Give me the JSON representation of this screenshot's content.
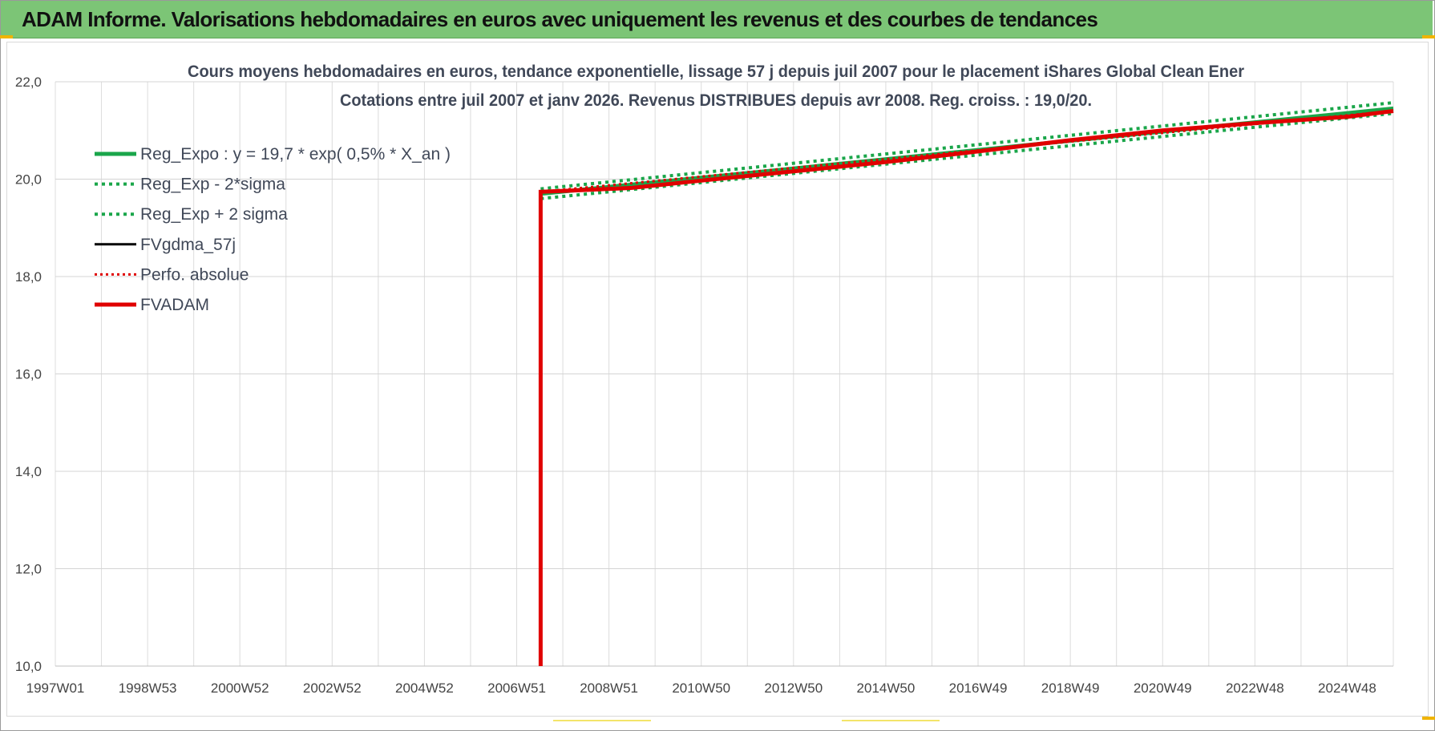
{
  "banner": {
    "title": "ADAM Informe. Valorisations hebdomadaires en euros avec uniquement les revenus et des courbes de tendances",
    "color": "#7cc576"
  },
  "chart_data": {
    "type": "line",
    "title": "Cours moyens hebdomadaires en euros, tendance exponentielle, lissage 57 j depuis juil 2007 pour le placement iShares Global Clean Ener",
    "subtitle": "Cotations entre juil 2007 et janv 2026. Revenus DISTRIBUES depuis avr 2008. Reg. croiss. : 19,0/20.",
    "xlabel": "",
    "ylabel": "",
    "ylim": [
      10,
      22
    ],
    "yticks": [
      "10,0",
      "12,0",
      "14,0",
      "16,0",
      "18,0",
      "20,0",
      "22,0"
    ],
    "xlim": [
      1997.0,
      2026.0
    ],
    "xticks": [
      {
        "label": "1997W01",
        "x": 1997.0
      },
      {
        "label": "1998W53",
        "x": 1999.0
      },
      {
        "label": "2000W52",
        "x": 2001.0
      },
      {
        "label": "2002W52",
        "x": 2003.0
      },
      {
        "label": "2004W52",
        "x": 2005.0
      },
      {
        "label": "2006W51",
        "x": 2007.0
      },
      {
        "label": "2008W51",
        "x": 2009.0
      },
      {
        "label": "2010W50",
        "x": 2011.0
      },
      {
        "label": "2012W50",
        "x": 2013.0
      },
      {
        "label": "2014W50",
        "x": 2015.0
      },
      {
        "label": "2016W49",
        "x": 2017.0
      },
      {
        "label": "2018W49",
        "x": 2019.0
      },
      {
        "label": "2020W49",
        "x": 2021.0
      },
      {
        "label": "2022W48",
        "x": 2023.0
      },
      {
        "label": "2024W48",
        "x": 2025.0
      }
    ],
    "grid": true,
    "legend_position": "top-left",
    "series": [
      {
        "name": "Reg_Expo : y = 19,7 * exp( 0,5% *  X_an )",
        "color": "#1aa64a",
        "style": "solid",
        "width": 5,
        "x": [
          2007.52,
          2026.0
        ],
        "y": [
          19.7,
          21.45
        ]
      },
      {
        "name": "Reg_Exp - 2*sigma",
        "color": "#1aa64a",
        "style": "dotted",
        "width": 4,
        "x": [
          2007.52,
          2026.0
        ],
        "y": [
          19.6,
          21.35
        ]
      },
      {
        "name": "Reg_Exp + 2 sigma",
        "color": "#1aa64a",
        "style": "dotted",
        "width": 4,
        "x": [
          2007.52,
          2026.0
        ],
        "y": [
          19.8,
          21.57
        ]
      },
      {
        "name": "FVgdma_57j",
        "color": "#000000",
        "style": "solid",
        "width": 3,
        "x": [
          2007.52,
          2008.3,
          2009.5,
          2011.0,
          2013.0,
          2015.0,
          2017.0,
          2019.0,
          2021.0,
          2023.0,
          2025.0,
          2026.0
        ],
        "y": [
          19.74,
          19.77,
          19.82,
          19.97,
          20.16,
          20.35,
          20.57,
          20.8,
          21.0,
          21.15,
          21.28,
          21.4
        ]
      },
      {
        "name": "Perfo. absolue",
        "color": "#e00000",
        "style": "dotted",
        "width": 3,
        "x": [
          2007.52,
          2026.0
        ],
        "y": [
          19.74,
          21.4
        ]
      },
      {
        "name": "FVADAM",
        "color": "#e00000",
        "style": "solid",
        "width": 5,
        "x": [
          2007.52,
          2007.52,
          2008.3,
          2009.5,
          2011.0,
          2013.0,
          2015.0,
          2017.0,
          2019.0,
          2021.0,
          2023.0,
          2025.0,
          2026.0
        ],
        "y": [
          10.0,
          19.74,
          19.77,
          19.82,
          19.97,
          20.16,
          20.35,
          20.57,
          20.8,
          21.0,
          21.15,
          21.28,
          21.4
        ]
      }
    ]
  }
}
